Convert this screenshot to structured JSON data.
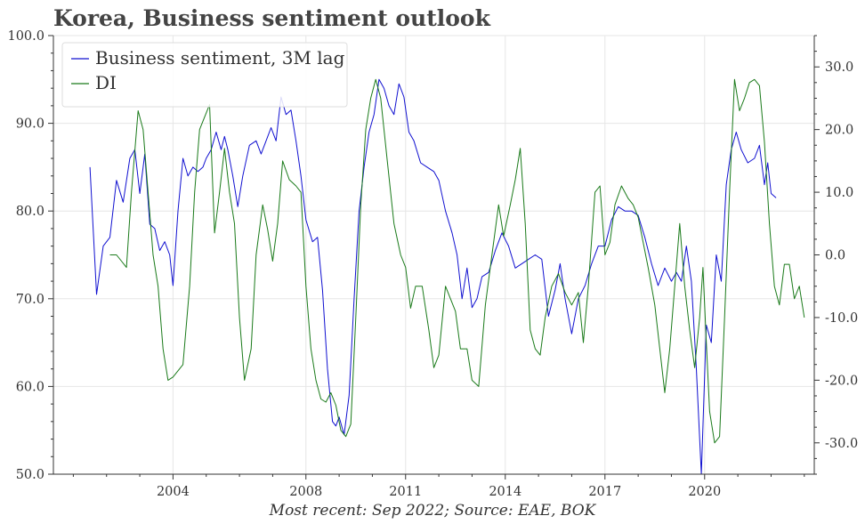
{
  "title": "Korea, Business sentiment outlook",
  "caption": "Most recent: Sep 2022; Source: EAE, BOK",
  "colors": {
    "business_sentiment": "#1010d0",
    "di": "#1a7a1a",
    "grid": "#e6e6e6",
    "axis": "#333333"
  },
  "chart_data": {
    "type": "line",
    "x_axis": {
      "range": [
        2000.4,
        2023.3
      ],
      "ticks": [
        2004,
        2008,
        2011,
        2014,
        2017,
        2020
      ],
      "tick_labels": [
        "2004",
        "2008",
        "2011",
        "2014",
        "2017",
        "2020"
      ]
    },
    "y_left": {
      "range": [
        50,
        100
      ],
      "ticks": [
        50,
        60,
        70,
        80,
        90,
        100
      ],
      "tick_labels": [
        "50.0",
        "60.0",
        "70.0",
        "80.0",
        "90.0",
        "100.0"
      ]
    },
    "y_right": {
      "range": [
        -35,
        35
      ],
      "ticks": [
        -30,
        -20,
        -10,
        0,
        10,
        20,
        30
      ],
      "tick_labels": [
        "-30.0",
        "-20.0",
        "-10.0",
        "0.0",
        "10.0",
        "20.0",
        "30.0"
      ]
    },
    "legend": {
      "placement": "top-left",
      "entries": [
        "Business sentiment, 3M lag",
        "DI"
      ]
    },
    "grid": true,
    "series": [
      {
        "name": "Business sentiment, 3M lag",
        "axis": "left",
        "points": [
          [
            2001.5,
            85.0
          ],
          [
            2001.7,
            70.5
          ],
          [
            2001.9,
            76.0
          ],
          [
            2002.1,
            77.0
          ],
          [
            2002.3,
            83.5
          ],
          [
            2002.5,
            81.0
          ],
          [
            2002.7,
            86.0
          ],
          [
            2002.85,
            87.0
          ],
          [
            2003.0,
            82.0
          ],
          [
            2003.15,
            86.5
          ],
          [
            2003.3,
            78.5
          ],
          [
            2003.45,
            78.0
          ],
          [
            2003.6,
            75.5
          ],
          [
            2003.75,
            76.5
          ],
          [
            2003.9,
            75.0
          ],
          [
            2004.0,
            71.5
          ],
          [
            2004.15,
            80.0
          ],
          [
            2004.3,
            86.0
          ],
          [
            2004.45,
            84.0
          ],
          [
            2004.6,
            85.0
          ],
          [
            2004.75,
            84.5
          ],
          [
            2004.9,
            85.0
          ],
          [
            2005.0,
            86.0
          ],
          [
            2005.15,
            87.0
          ],
          [
            2005.3,
            89.0
          ],
          [
            2005.45,
            87.0
          ],
          [
            2005.55,
            88.5
          ],
          [
            2005.65,
            87.0
          ],
          [
            2005.8,
            84.0
          ],
          [
            2005.95,
            80.5
          ],
          [
            2006.1,
            84.0
          ],
          [
            2006.3,
            87.5
          ],
          [
            2006.5,
            88.0
          ],
          [
            2006.65,
            86.5
          ],
          [
            2006.8,
            88.0
          ],
          [
            2006.95,
            89.5
          ],
          [
            2007.1,
            88.0
          ],
          [
            2007.25,
            93.0
          ],
          [
            2007.4,
            91.0
          ],
          [
            2007.55,
            91.5
          ],
          [
            2007.7,
            88.0
          ],
          [
            2007.85,
            84.0
          ],
          [
            2008.0,
            79.0
          ],
          [
            2008.2,
            76.5
          ],
          [
            2008.35,
            77.0
          ],
          [
            2008.5,
            71.0
          ],
          [
            2008.65,
            62.0
          ],
          [
            2008.8,
            56.0
          ],
          [
            2008.9,
            55.5
          ],
          [
            2009.0,
            56.5
          ],
          [
            2009.15,
            54.5
          ],
          [
            2009.3,
            59.0
          ],
          [
            2009.45,
            70.0
          ],
          [
            2009.6,
            80.0
          ],
          [
            2009.75,
            85.0
          ],
          [
            2009.9,
            89.0
          ],
          [
            2010.05,
            91.0
          ],
          [
            2010.2,
            95.0
          ],
          [
            2010.35,
            94.0
          ],
          [
            2010.5,
            92.0
          ],
          [
            2010.65,
            91.0
          ],
          [
            2010.8,
            94.5
          ],
          [
            2010.95,
            93.0
          ],
          [
            2011.1,
            89.0
          ],
          [
            2011.25,
            88.0
          ],
          [
            2011.45,
            85.5
          ],
          [
            2011.65,
            85.0
          ],
          [
            2011.85,
            84.5
          ],
          [
            2012.0,
            83.5
          ],
          [
            2012.2,
            80.0
          ],
          [
            2012.4,
            77.5
          ],
          [
            2012.55,
            75.0
          ],
          [
            2012.7,
            70.0
          ],
          [
            2012.85,
            73.5
          ],
          [
            2013.0,
            69.0
          ],
          [
            2013.15,
            70.0
          ],
          [
            2013.3,
            72.5
          ],
          [
            2013.5,
            73.0
          ],
          [
            2013.7,
            75.5
          ],
          [
            2013.9,
            77.5
          ],
          [
            2014.1,
            76.0
          ],
          [
            2014.3,
            73.5
          ],
          [
            2014.5,
            74.0
          ],
          [
            2014.7,
            74.5
          ],
          [
            2014.9,
            75.0
          ],
          [
            2015.1,
            74.5
          ],
          [
            2015.3,
            68.0
          ],
          [
            2015.5,
            71.0
          ],
          [
            2015.65,
            74.0
          ],
          [
            2015.8,
            70.0
          ],
          [
            2016.0,
            66.0
          ],
          [
            2016.2,
            70.0
          ],
          [
            2016.4,
            71.5
          ],
          [
            2016.6,
            74.0
          ],
          [
            2016.8,
            76.0
          ],
          [
            2017.0,
            76.0
          ],
          [
            2017.2,
            79.0
          ],
          [
            2017.4,
            80.5
          ],
          [
            2017.6,
            80.0
          ],
          [
            2017.8,
            80.0
          ],
          [
            2018.0,
            79.5
          ],
          [
            2018.2,
            77.0
          ],
          [
            2018.4,
            74.0
          ],
          [
            2018.6,
            71.5
          ],
          [
            2018.8,
            73.5
          ],
          [
            2019.0,
            72.0
          ],
          [
            2019.15,
            73.0
          ],
          [
            2019.3,
            72.0
          ],
          [
            2019.45,
            76.0
          ],
          [
            2019.6,
            72.0
          ],
          [
            2019.75,
            62.0
          ],
          [
            2019.9,
            50.0
          ],
          [
            2020.05,
            67.0
          ],
          [
            2020.2,
            65.0
          ],
          [
            2020.35,
            75.0
          ],
          [
            2020.5,
            72.0
          ],
          [
            2020.65,
            83.0
          ],
          [
            2020.8,
            87.0
          ],
          [
            2020.95,
            89.0
          ],
          [
            2021.1,
            87.0
          ],
          [
            2021.3,
            85.5
          ],
          [
            2021.5,
            86.0
          ],
          [
            2021.65,
            87.5
          ],
          [
            2021.8,
            83.0
          ],
          [
            2021.9,
            85.5
          ],
          [
            2022.0,
            82.0
          ],
          [
            2022.15,
            81.5
          ]
        ]
      },
      {
        "name": "DI",
        "axis": "right",
        "points": [
          [
            2002.1,
            0.0
          ],
          [
            2002.3,
            0.0
          ],
          [
            2002.45,
            -1.0
          ],
          [
            2002.6,
            -2.0
          ],
          [
            2002.75,
            10.0
          ],
          [
            2002.95,
            23.0
          ],
          [
            2003.1,
            20.0
          ],
          [
            2003.25,
            10.0
          ],
          [
            2003.4,
            0.0
          ],
          [
            2003.55,
            -5.0
          ],
          [
            2003.7,
            -15.0
          ],
          [
            2003.85,
            -20.0
          ],
          [
            2004.0,
            -19.5
          ],
          [
            2004.15,
            -18.5
          ],
          [
            2004.3,
            -17.5
          ],
          [
            2004.5,
            -5.0
          ],
          [
            2004.65,
            10.0
          ],
          [
            2004.8,
            20.0
          ],
          [
            2004.95,
            22.0
          ],
          [
            2005.1,
            24.0
          ],
          [
            2005.25,
            3.5
          ],
          [
            2005.4,
            10.0
          ],
          [
            2005.55,
            17.0
          ],
          [
            2005.7,
            10.0
          ],
          [
            2005.85,
            5.0
          ],
          [
            2006.0,
            -10.0
          ],
          [
            2006.15,
            -20.0
          ],
          [
            2006.35,
            -15.0
          ],
          [
            2006.5,
            0.0
          ],
          [
            2006.7,
            8.0
          ],
          [
            2006.85,
            4.0
          ],
          [
            2007.0,
            -1.0
          ],
          [
            2007.15,
            5.0
          ],
          [
            2007.3,
            15.0
          ],
          [
            2007.5,
            12.0
          ],
          [
            2007.7,
            11.0
          ],
          [
            2007.85,
            10.0
          ],
          [
            2008.0,
            -5.0
          ],
          [
            2008.15,
            -15.0
          ],
          [
            2008.3,
            -20.0
          ],
          [
            2008.45,
            -23.0
          ],
          [
            2008.6,
            -23.5
          ],
          [
            2008.75,
            -22.0
          ],
          [
            2008.9,
            -24.0
          ],
          [
            2009.05,
            -28.0
          ],
          [
            2009.2,
            -29.0
          ],
          [
            2009.35,
            -27.0
          ],
          [
            2009.5,
            -10.0
          ],
          [
            2009.65,
            8.0
          ],
          [
            2009.8,
            20.0
          ],
          [
            2009.95,
            25.0
          ],
          [
            2010.1,
            28.0
          ],
          [
            2010.25,
            25.0
          ],
          [
            2010.45,
            15.0
          ],
          [
            2010.65,
            5.0
          ],
          [
            2010.85,
            0.0
          ],
          [
            2011.0,
            -2.0
          ],
          [
            2011.15,
            -8.5
          ],
          [
            2011.3,
            -5.0
          ],
          [
            2011.5,
            -5.0
          ],
          [
            2011.7,
            -12.0
          ],
          [
            2011.85,
            -18.0
          ],
          [
            2012.0,
            -16.0
          ],
          [
            2012.2,
            -5.0
          ],
          [
            2012.35,
            -7.0
          ],
          [
            2012.5,
            -9.0
          ],
          [
            2012.65,
            -15.0
          ],
          [
            2012.85,
            -15.0
          ],
          [
            2013.0,
            -20.0
          ],
          [
            2013.2,
            -21.0
          ],
          [
            2013.4,
            -8.0
          ],
          [
            2013.6,
            0.0
          ],
          [
            2013.8,
            8.0
          ],
          [
            2013.95,
            3.0
          ],
          [
            2014.15,
            8.0
          ],
          [
            2014.3,
            12.0
          ],
          [
            2014.45,
            17.0
          ],
          [
            2014.6,
            5.0
          ],
          [
            2014.75,
            -12.0
          ],
          [
            2014.9,
            -15.0
          ],
          [
            2015.05,
            -16.0
          ],
          [
            2015.2,
            -10.0
          ],
          [
            2015.4,
            -5.0
          ],
          [
            2015.6,
            -3.0
          ],
          [
            2015.8,
            -6.0
          ],
          [
            2016.0,
            -8.0
          ],
          [
            2016.2,
            -6.0
          ],
          [
            2016.35,
            -14.0
          ],
          [
            2016.5,
            -5.0
          ],
          [
            2016.7,
            10.0
          ],
          [
            2016.85,
            11.0
          ],
          [
            2017.0,
            0.0
          ],
          [
            2017.15,
            2.0
          ],
          [
            2017.3,
            8.0
          ],
          [
            2017.5,
            11.0
          ],
          [
            2017.7,
            9.0
          ],
          [
            2017.85,
            8.0
          ],
          [
            2018.0,
            6.0
          ],
          [
            2018.15,
            2.0
          ],
          [
            2018.3,
            -2.0
          ],
          [
            2018.5,
            -8.0
          ],
          [
            2018.65,
            -15.0
          ],
          [
            2018.8,
            -22.0
          ],
          [
            2018.95,
            -15.0
          ],
          [
            2019.1,
            -5.0
          ],
          [
            2019.25,
            5.0
          ],
          [
            2019.4,
            -5.0
          ],
          [
            2019.55,
            -12.0
          ],
          [
            2019.7,
            -18.0
          ],
          [
            2019.85,
            -10.0
          ],
          [
            2019.95,
            -2.0
          ],
          [
            2020.05,
            -14.0
          ],
          [
            2020.15,
            -25.0
          ],
          [
            2020.3,
            -30.0
          ],
          [
            2020.45,
            -29.0
          ],
          [
            2020.6,
            -10.0
          ],
          [
            2020.75,
            10.0
          ],
          [
            2020.9,
            28.0
          ],
          [
            2021.05,
            23.0
          ],
          [
            2021.2,
            25.0
          ],
          [
            2021.35,
            27.5
          ],
          [
            2021.5,
            28.0
          ],
          [
            2021.65,
            27.0
          ],
          [
            2021.8,
            18.0
          ],
          [
            2021.95,
            5.0
          ],
          [
            2022.1,
            -5.0
          ],
          [
            2022.25,
            -8.0
          ],
          [
            2022.4,
            -1.5
          ],
          [
            2022.55,
            -1.5
          ],
          [
            2022.7,
            -7.0
          ],
          [
            2022.85,
            -5.0
          ],
          [
            2023.0,
            -10.0
          ]
        ]
      }
    ]
  }
}
